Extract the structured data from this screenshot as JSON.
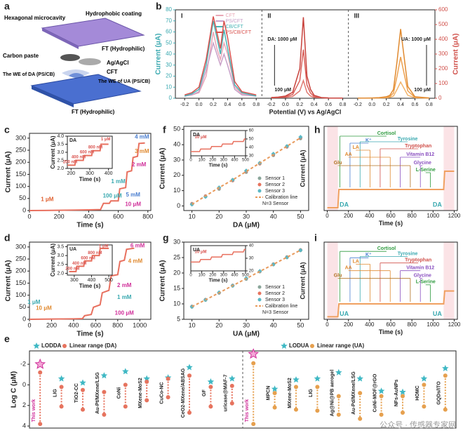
{
  "panel_labels": [
    "a",
    "b",
    "c",
    "d",
    "e",
    "f",
    "g",
    "h",
    "i"
  ],
  "watermark": "公众号 · 传感器专家网",
  "diagram": {
    "texts": [
      "Hexagonal microcavity",
      "Hydrophobic coating",
      "FT (Hydrophilic)",
      "Carbon paste",
      "Ag/AgCl",
      "CFT",
      "The WE of DA (PS/CB)",
      "The WE of UA (PS/CB)",
      "FT (Hydrophilic)"
    ]
  },
  "chart_data": [
    {
      "type": "voltammogram",
      "subpanels": [
        "I",
        "II",
        "III"
      ],
      "xlabel": "Potential (V) vs Ag/AgCl",
      "ylabel": "Current (μA)",
      "y2label": "Current (μA)",
      "xlim": [
        -0.3,
        0.85
      ],
      "xticks": [
        -0.2,
        {
          "value": 0,
          "label": "0.0"
        },
        0.2,
        0.4,
        0.6,
        0.8
      ],
      "ylim": [
        0,
        80
      ],
      "yticks": [
        0,
        10,
        20,
        30,
        40,
        50,
        60,
        70,
        80
      ],
      "y2lim": [
        0,
        600
      ],
      "y2ticks": [
        0,
        100,
        200,
        300,
        400,
        500,
        600
      ],
      "x": [
        -0.2,
        -0.1,
        0,
        0.1,
        0.2,
        0.25,
        0.3,
        0.35,
        0.4,
        0.5,
        0.6,
        0.8
      ],
      "series": [
        {
          "name": "CFT",
          "color": "#e9a7b6",
          "panel": 0,
          "values": [
            2,
            3,
            5,
            20,
            60,
            45,
            35,
            50,
            40,
            10,
            4,
            2
          ]
        },
        {
          "name": "PS/CFT",
          "color": "#c9a0c8",
          "panel": 0,
          "values": [
            2,
            3,
            6,
            25,
            50,
            40,
            30,
            40,
            30,
            8,
            3,
            2
          ]
        },
        {
          "name": "CB/CFT",
          "color": "#47b3b5",
          "panel": 0,
          "values": [
            2,
            4,
            8,
            30,
            70,
            55,
            40,
            62,
            45,
            12,
            5,
            2
          ]
        },
        {
          "name": "PS/CB/CFT",
          "color": "#d9534f",
          "panel": 0,
          "values": [
            3,
            5,
            10,
            35,
            74,
            60,
            45,
            70,
            55,
            15,
            6,
            3
          ]
        },
        {
          "color": "#e07a72",
          "panel": 1,
          "axis": "y2",
          "values": [
            3,
            4,
            6,
            12,
            50,
            120,
            40,
            15,
            6,
            3,
            1,
            1
          ]
        },
        {
          "color": "#d9605a",
          "panel": 1,
          "axis": "y2",
          "values": [
            4,
            6,
            10,
            25,
            120,
            330,
            90,
            35,
            12,
            4,
            2,
            1
          ]
        },
        {
          "color": "#c8423c",
          "panel": 1,
          "axis": "y2",
          "values": [
            5,
            8,
            15,
            40,
            200,
            550,
            150,
            60,
            20,
            5,
            2,
            1
          ]
        },
        {
          "color": "#f2b36a",
          "panel": 2,
          "axis": "y2",
          "values": [
            1,
            1,
            1,
            2,
            3,
            6,
            15,
            60,
            110,
            20,
            3,
            1
          ]
        },
        {
          "color": "#eda04e",
          "panel": 2,
          "axis": "y2",
          "values": [
            1,
            1,
            1,
            3,
            6,
            12,
            35,
            150,
            280,
            50,
            6,
            1
          ]
        },
        {
          "color": "#e08a30",
          "panel": 2,
          "axis": "y2",
          "values": [
            1,
            1,
            2,
            4,
            10,
            20,
            60,
            250,
            470,
            80,
            10,
            2
          ]
        }
      ],
      "annotations": [
        "DA: 1000 μM",
        "100 μM",
        "UA: 1000 μM",
        "100 μM"
      ]
    },
    {
      "type": "staircase",
      "xlabel": "Time (s)",
      "ylabel": "Current (μA)",
      "xlim": [
        0,
        820
      ],
      "xticks": [
        0,
        200,
        400,
        600,
        800
      ],
      "ylim": [
        0,
        320
      ],
      "yticks": [
        0,
        50,
        100,
        150,
        200,
        250,
        300
      ],
      "x": [
        0,
        100,
        200,
        300,
        400,
        480,
        500,
        540,
        550,
        600,
        610,
        650,
        660,
        690,
        700,
        730,
        740,
        780
      ],
      "series": [
        {
          "color": "#e8705f",
          "values": [
            0,
            0.5,
            1,
            2,
            3,
            4,
            30,
            30,
            40,
            40,
            90,
            95,
            160,
            165,
            220,
            225,
            278,
            280
          ]
        }
      ],
      "annotations": [
        "4 mM",
        "3 mM",
        "2 mM",
        "1 mM",
        "5 mM",
        "100 μM",
        "10 μM",
        "1 μM"
      ],
      "inset": {
        "xlabel": "Time (s)",
        "ylabel": "Current (μA)",
        "tag": "DA",
        "xlim": [
          180,
          420
        ],
        "xticks": [
          200,
          300,
          400
        ],
        "ylim": [
          2.0,
          4.0
        ],
        "yticks": [
          {
            "value": 2,
            "label": "2.0"
          },
          2.5,
          {
            "value": 3,
            "label": "3.0"
          },
          3.5,
          {
            "value": 4,
            "label": "4.0"
          }
        ],
        "x": [
          180,
          220,
          225,
          265,
          270,
          310,
          315,
          355,
          360,
          400
        ],
        "series": [
          {
            "color": "#e8705f",
            "values": [
              2.2,
              2.2,
              2.5,
              2.5,
              2.8,
              2.8,
              3.1,
              3.1,
              3.5,
              3.5
            ]
          }
        ],
        "annotations": [
          "1 μM",
          "800 nM",
          "600 nM",
          "400 nM",
          "200 nM"
        ]
      }
    },
    {
      "type": "staircase",
      "xlabel": "Time (s)",
      "ylabel": "Current (μA)",
      "xlim": [
        0,
        1100
      ],
      "xticks": [
        0,
        200,
        400,
        600,
        800,
        1000
      ],
      "ylim": [
        0,
        320
      ],
      "yticks": [
        0,
        50,
        100,
        150,
        200,
        250,
        300
      ],
      "x": [
        0,
        200,
        400,
        480,
        500,
        560,
        580,
        640,
        660,
        720,
        740,
        800,
        820,
        860,
        880,
        950
      ],
      "series": [
        {
          "color": "#e8705f",
          "values": [
            0,
            1,
            2,
            3,
            15,
            20,
            50,
            60,
            110,
            120,
            180,
            185,
            240,
            245,
            290,
            295
          ]
        }
      ],
      "annotations": [
        "6 mM",
        "4 mM",
        "2 mM",
        "1 mM",
        "100 μM",
        "10 μM",
        "1 μM"
      ],
      "inset": {
        "xlabel": "Time (s)",
        "ylabel": "Current (μA)",
        "tag": "UA",
        "xlim": [
          260,
          520
        ],
        "xticks": [
          300,
          400,
          500
        ],
        "ylim": [
          1.9,
          3.6
        ],
        "yticks": [
          {
            "value": 2,
            "label": "2.0"
          },
          2.5,
          {
            "value": 3,
            "label": "3.0"
          },
          3.5
        ],
        "x": [
          270,
          310,
          315,
          355,
          360,
          400,
          405,
          445,
          450,
          500
        ],
        "series": [
          {
            "color": "#e8705f",
            "values": [
              2.1,
              2.1,
              2.4,
              2.4,
              2.7,
              2.7,
              3.0,
              3.0,
              3.4,
              3.4
            ]
          }
        ],
        "annotations": [
          "1 μM",
          "800 nM",
          "600 nM",
          "400 nM",
          "200 nM"
        ]
      }
    },
    {
      "type": "range_dot",
      "ylabel": "Log C (μM)",
      "ylim": [
        -3.3,
        4.2
      ],
      "yticks": [
        -2,
        0,
        2,
        4
      ],
      "categories": [
        "This work",
        "LIG",
        "TiO2-CC",
        "Au-Pt/MXene/LSG",
        "CoNi",
        "MXene-MoS2",
        "CuCo-NC",
        "CeO2-MXene/ABSAG",
        "GF",
        "uricase@MAF-7",
        "This work",
        "MPCN",
        "MXene-MoS2",
        "LIG",
        "Ag@Ni@PB aerogel",
        "Au-Pd/MXene/LSG",
        "CoNi-MOF@rGO",
        "NFs-AuNPs",
        "HOMC",
        "GQDs/ITO"
      ],
      "series": [
        {
          "name": "LODDA",
          "color": "#3fb8c4",
          "values": [
            -2.0,
            -0.6,
            -0.2,
            -0.9,
            -1.3,
            -0.6,
            -0.7,
            -1.7,
            -0.3,
            -0.6,
            null,
            null,
            null,
            null,
            null,
            null,
            null,
            null,
            null,
            null
          ]
        },
        {
          "name": "Linear range (DA)",
          "color": "#e6735e",
          "low": [
            -1.2,
            0.2,
            0.5,
            0.7,
            0,
            -0.3,
            -0.6,
            -0.9,
            0.2,
            0.1,
            null,
            null,
            null,
            null,
            null,
            null,
            null,
            null,
            null,
            null
          ],
          "high": [
            3.8,
            2.1,
            2.4,
            2.9,
            2.1,
            1.5,
            1.2,
            2.7,
            2.1,
            1.8,
            null,
            null,
            null,
            null,
            null,
            null,
            null,
            null,
            null,
            null
          ]
        },
        {
          "name": "LODUA",
          "color": "#3fb8c4",
          "values": [
            null,
            null,
            null,
            null,
            null,
            null,
            null,
            null,
            null,
            null,
            -3.0,
            0.4,
            -0.5,
            -0.6,
            -1.2,
            -0.6,
            0.6,
            0.7,
            -0.6,
            -1.6
          ]
        },
        {
          "name": "Linear range (UA)",
          "color": "#e6a04e",
          "low": [
            null,
            null,
            null,
            null,
            null,
            null,
            null,
            null,
            null,
            null,
            -2.1,
            0.8,
            0.2,
            0.2,
            1.1,
            0.8,
            1.1,
            1.1,
            0,
            -0.9
          ],
          "high": [
            null,
            null,
            null,
            null,
            null,
            null,
            null,
            null,
            null,
            null,
            3.8,
            2.2,
            2.4,
            2.5,
            2.9,
            3.3,
            2.9,
            2.7,
            2.1,
            2.4
          ]
        }
      ]
    },
    {
      "type": "calibration",
      "xlabel": "DA (μM)",
      "ylabel": "Current (μA)",
      "xlim": [
        7,
        53
      ],
      "xticks": [
        10,
        20,
        30,
        40,
        50
      ],
      "ylim": [
        -3,
        52
      ],
      "yticks": [
        0,
        10,
        20,
        30,
        40,
        50
      ],
      "x": [
        10,
        15,
        20,
        25,
        30,
        35,
        40,
        45,
        50
      ],
      "series": [
        {
          "name": "Sensor 1",
          "color": "#8aa69a",
          "style": "scatter",
          "values": [
            1,
            6,
            11,
            17,
            22,
            28,
            33,
            39,
            44
          ]
        },
        {
          "name": "Sensor 2",
          "color": "#e6735e",
          "style": "scatter",
          "values": [
            1.5,
            6.5,
            11.5,
            16.5,
            22.5,
            27.5,
            33.5,
            38.5,
            44.5
          ]
        },
        {
          "name": "Sensor 3",
          "color": "#5bb8c4",
          "style": "scatter",
          "values": [
            1,
            6,
            12,
            17,
            23,
            28,
            34,
            39,
            45
          ]
        },
        {
          "name": "Calibration line",
          "color": "#e89a5c",
          "style": "dashed",
          "values": [
            1,
            6.5,
            12,
            17,
            22.5,
            28,
            33.5,
            39,
            44.5
          ]
        }
      ],
      "note": "N=3 Sensor",
      "inset": {
        "xlabel": "Time (s)",
        "tag": "DA",
        "xlim": [
          0,
          500
        ],
        "xticks": [
          0,
          100,
          200,
          300,
          400,
          500
        ],
        "ylim": [
          30,
          60
        ],
        "yticks": [
          30,
          40,
          50,
          60
        ],
        "x": [
          0,
          80,
          90,
          180,
          190,
          280,
          290,
          380,
          390,
          480,
          490,
          500
        ],
        "series": [
          {
            "color": "#e8705f",
            "values": [
              35,
              35,
              38,
              38,
              41,
              41,
              44,
              44,
              47,
              47,
              50,
              50
            ]
          }
        ],
        "annotations": [
          "10 μM"
        ]
      }
    },
    {
      "type": "calibration",
      "xlabel": "UA (μM)",
      "ylabel": "Current (μA)",
      "xlim": [
        7,
        53
      ],
      "xticks": [
        10,
        20,
        30,
        40,
        50
      ],
      "ylim": [
        5,
        30
      ],
      "yticks": [
        5,
        10,
        15,
        20,
        25,
        30
      ],
      "x": [
        10,
        15,
        20,
        25,
        30,
        35,
        40,
        45,
        50
      ],
      "series": [
        {
          "name": "Sensor 1",
          "color": "#8aa69a",
          "style": "scatter",
          "values": [
            9,
            11.2,
            13.5,
            15.8,
            18,
            20.4,
            22.7,
            25,
            27.3
          ]
        },
        {
          "name": "Sensor 2",
          "color": "#e6735e",
          "style": "scatter",
          "values": [
            9.2,
            11.4,
            13.6,
            16,
            18.2,
            20.5,
            22.9,
            25.2,
            27.5
          ]
        },
        {
          "name": "Sensor 3",
          "color": "#5bb8c4",
          "style": "scatter",
          "values": [
            9.1,
            11.3,
            13.7,
            15.9,
            18.3,
            20.6,
            22.8,
            25.1,
            27.4
          ]
        },
        {
          "name": "Calibration line",
          "color": "#e89a5c",
          "style": "dashed",
          "values": [
            9.1,
            11.3,
            13.6,
            15.9,
            18.2,
            20.5,
            22.8,
            25.1,
            27.4
          ]
        }
      ],
      "note": "N=3 Sensor",
      "inset": {
        "xlabel": "Time (s)",
        "tag": "UA",
        "xlim": [
          0,
          500
        ],
        "xticks": [
          0,
          100,
          200,
          300,
          400,
          500
        ],
        "ylim": [
          20,
          40
        ],
        "yticks": [
          20,
          30,
          40
        ],
        "x": [
          0,
          80,
          90,
          180,
          190,
          280,
          290,
          380,
          390,
          480,
          490,
          500
        ],
        "series": [
          {
            "color": "#e8705f",
            "values": [
              27,
              27,
              29,
              29,
              31,
              31,
              33,
              33,
              35,
              35,
              37,
              37
            ]
          }
        ],
        "annotations": [
          "10 μM"
        ]
      }
    },
    {
      "type": "interference",
      "xlabel": "Time (s)",
      "ylabel": "Current (μA)",
      "xlim": [
        -30,
        1230
      ],
      "xticks": [
        0,
        200,
        400,
        600,
        800,
        1000,
        1200
      ],
      "ylim": [
        0,
        60
      ],
      "x": [
        0,
        100,
        110,
        1100,
        1110,
        1200
      ],
      "series": [
        {
          "color": "#f0a060",
          "values": [
            2,
            2,
            15,
            15,
            28,
            28
          ]
        }
      ],
      "annotations": [
        "Cortisol",
        "K⁺",
        "Tyrosine",
        "LA",
        "Tryptophan",
        "AA",
        "Vitamin B12",
        "Glu",
        "Glycine",
        "L-Serine",
        "DA",
        "DA"
      ]
    },
    {
      "type": "interference",
      "xlabel": "Time (s)",
      "ylabel": "Current (μA)",
      "xlim": [
        -30,
        1230
      ],
      "xticks": [
        0,
        200,
        400,
        600,
        800,
        1000,
        1200
      ],
      "ylim": [
        0,
        60
      ],
      "x": [
        0,
        100,
        110,
        1100,
        1110,
        1200
      ],
      "series": [
        {
          "color": "#f0a060",
          "values": [
            2,
            2,
            12,
            12,
            22,
            22
          ]
        }
      ],
      "annotations": [
        "Cortisol",
        "K⁺",
        "Tyrosine",
        "LA",
        "Tryptophan",
        "AA",
        "Vitamin B12",
        "Glu",
        "Glycine",
        "L-Serine",
        "UA",
        "UA"
      ]
    }
  ]
}
